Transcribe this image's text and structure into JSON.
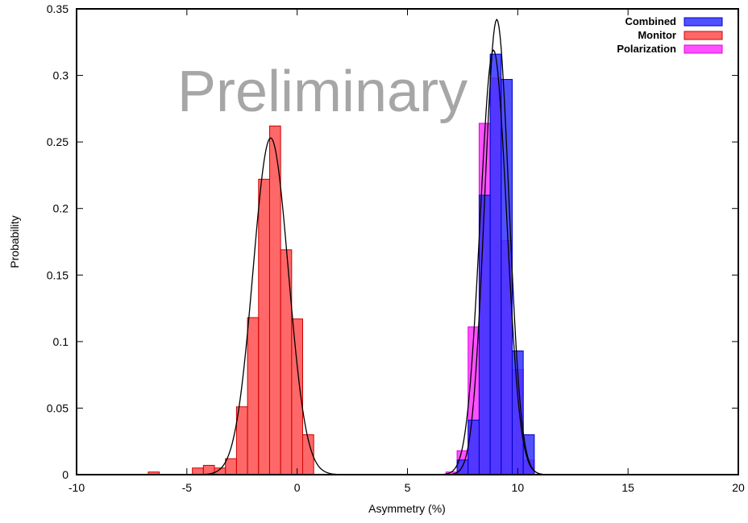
{
  "chart_data": {
    "type": "bar",
    "title": "",
    "xlabel": "Asymmetry (%)",
    "ylabel": "Probability",
    "xlim": [
      -10,
      20
    ],
    "ylim": [
      0,
      0.35
    ],
    "xticks": [
      -10,
      -5,
      0,
      5,
      10,
      15,
      20
    ],
    "xtick_labels": [
      "-10",
      "-5",
      "0",
      "5",
      "10",
      "15",
      "20"
    ],
    "yticks": [
      0,
      0.05,
      0.1,
      0.15,
      0.2,
      0.25,
      0.3,
      0.35
    ],
    "ytick_labels": [
      "0",
      "0.05",
      "0.1",
      "0.15",
      "0.2",
      "0.25",
      "0.3",
      "0.35"
    ],
    "grid": false,
    "legend_position": "top-right",
    "watermark": "Preliminary",
    "series": [
      {
        "name": "Polarization",
        "kind": "histogram",
        "color": "#ff33ff",
        "stroke": "#e000e0",
        "bin_width": 0.5,
        "bins": [
          {
            "x0": 6.75,
            "y": 0.002
          },
          {
            "x0": 7.25,
            "y": 0.018
          },
          {
            "x0": 7.75,
            "y": 0.111
          },
          {
            "x0": 8.25,
            "y": 0.264
          },
          {
            "x0": 8.75,
            "y": 0.298
          },
          {
            "x0": 9.25,
            "y": 0.176
          },
          {
            "x0": 9.75,
            "y": 0.079
          },
          {
            "x0": 10.25,
            "y": 0.011
          }
        ]
      },
      {
        "name": "Monitor",
        "kind": "histogram",
        "color": "#ff4d4d",
        "stroke": "#cc0000",
        "bin_width": 0.5,
        "bins": [
          {
            "x0": -6.75,
            "y": 0.002
          },
          {
            "x0": -4.75,
            "y": 0.005
          },
          {
            "x0": -4.25,
            "y": 0.007
          },
          {
            "x0": -3.75,
            "y": 0.005
          },
          {
            "x0": -3.25,
            "y": 0.012
          },
          {
            "x0": -2.75,
            "y": 0.051
          },
          {
            "x0": -2.25,
            "y": 0.118
          },
          {
            "x0": -1.75,
            "y": 0.222
          },
          {
            "x0": -1.25,
            "y": 0.262
          },
          {
            "x0": -0.75,
            "y": 0.169
          },
          {
            "x0": -0.25,
            "y": 0.117
          },
          {
            "x0": 0.25,
            "y": 0.03
          }
        ]
      },
      {
        "name": "Combined",
        "kind": "histogram",
        "color": "#3333ff",
        "stroke": "#0000cc",
        "bin_width": 0.5,
        "bins": [
          {
            "x0": 7.25,
            "y": 0.011
          },
          {
            "x0": 7.75,
            "y": 0.041
          },
          {
            "x0": 8.25,
            "y": 0.21
          },
          {
            "x0": 8.75,
            "y": 0.316
          },
          {
            "x0": 9.25,
            "y": 0.297
          },
          {
            "x0": 9.75,
            "y": 0.093
          },
          {
            "x0": 10.25,
            "y": 0.03
          }
        ]
      }
    ],
    "fits": [
      {
        "kind": "gaussian",
        "mean": -1.2,
        "sigma": 0.8,
        "amplitude": 0.253,
        "color": "#000000"
      },
      {
        "kind": "gaussian",
        "mean": 8.9,
        "sigma": 0.6,
        "amplitude": 0.319,
        "color": "#000000"
      },
      {
        "kind": "gaussian",
        "mean": 9.05,
        "sigma": 0.55,
        "amplitude": 0.342,
        "color": "#000000"
      }
    ],
    "legend": [
      {
        "label": "Combined",
        "color": "#3333ff",
        "stroke": "#0000cc"
      },
      {
        "label": "Monitor",
        "color": "#ff4d4d",
        "stroke": "#cc0000"
      },
      {
        "label": "Polarization",
        "color": "#ff33ff",
        "stroke": "#e000e0"
      }
    ]
  }
}
